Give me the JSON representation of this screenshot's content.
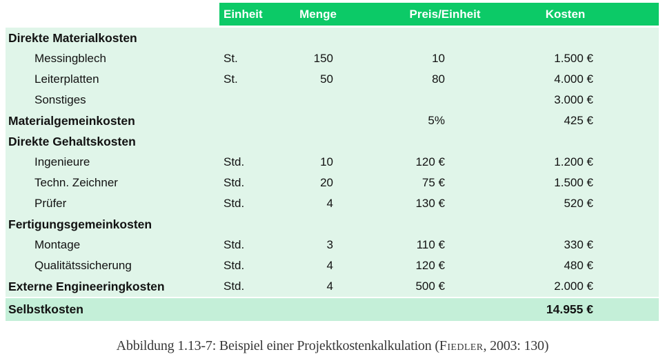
{
  "colors": {
    "header_green": "#0cca67",
    "body_mint": "#e0f5e9",
    "total_mint": "#c4efd8",
    "header_text": "#ffffff",
    "body_text": "#121212",
    "caption_text": "#383838"
  },
  "table": {
    "columns": [
      "",
      "Einheit",
      "Menge",
      "Preis/Einheit",
      "Kosten"
    ],
    "rows": [
      {
        "label": "Direkte Materialkosten",
        "bold": true,
        "indent": false,
        "einheit": "",
        "menge": "",
        "preis": "",
        "kosten": ""
      },
      {
        "label": "Messingblech",
        "bold": false,
        "indent": true,
        "einheit": "St.",
        "menge": "150",
        "preis": "10",
        "kosten": "1.500 €"
      },
      {
        "label": "Leiterplatten",
        "bold": false,
        "indent": true,
        "einheit": "St.",
        "menge": "50",
        "preis": "80",
        "kosten": "4.000 €"
      },
      {
        "label": "Sonstiges",
        "bold": false,
        "indent": true,
        "einheit": "",
        "menge": "",
        "preis": "",
        "kosten": "3.000 €"
      },
      {
        "label": "Materialgemeinkosten",
        "bold": true,
        "indent": false,
        "einheit": "",
        "menge": "",
        "preis": "5%",
        "kosten": "425 €"
      },
      {
        "label": "Direkte Gehaltskosten",
        "bold": true,
        "indent": false,
        "einheit": "",
        "menge": "",
        "preis": "",
        "kosten": ""
      },
      {
        "label": "Ingenieure",
        "bold": false,
        "indent": true,
        "einheit": "Std.",
        "menge": "10",
        "preis": "120 €",
        "kosten": "1.200 €"
      },
      {
        "label": "Techn. Zeichner",
        "bold": false,
        "indent": true,
        "einheit": "Std.",
        "menge": "20",
        "preis": "75 €",
        "kosten": "1.500 €"
      },
      {
        "label": "Prüfer",
        "bold": false,
        "indent": true,
        "einheit": "Std.",
        "menge": "4",
        "preis": "130 €",
        "kosten": "520 €"
      },
      {
        "label": "Fertigungsgemeinkosten",
        "bold": true,
        "indent": false,
        "einheit": "",
        "menge": "",
        "preis": "",
        "kosten": ""
      },
      {
        "label": "Montage",
        "bold": false,
        "indent": true,
        "einheit": "Std.",
        "menge": "3",
        "preis": "110 €",
        "kosten": "330 €"
      },
      {
        "label": "Qualitätssicherung",
        "bold": false,
        "indent": true,
        "einheit": "Std.",
        "menge": "4",
        "preis": "120 €",
        "kosten": "480 €"
      },
      {
        "label": "Externe Engineeringkosten",
        "bold": true,
        "indent": false,
        "einheit": "Std.",
        "menge": "4",
        "preis": "500 €",
        "kosten": "2.000 €"
      }
    ],
    "total_row": {
      "label": "Selbstkosten",
      "kosten": "14.955 €"
    }
  },
  "caption": {
    "prefix": "Abbildung 1.13-7: Beispiel einer Projektkostenkalkulation (",
    "author": "Fiedler",
    "suffix": ", 2003: 130)"
  }
}
